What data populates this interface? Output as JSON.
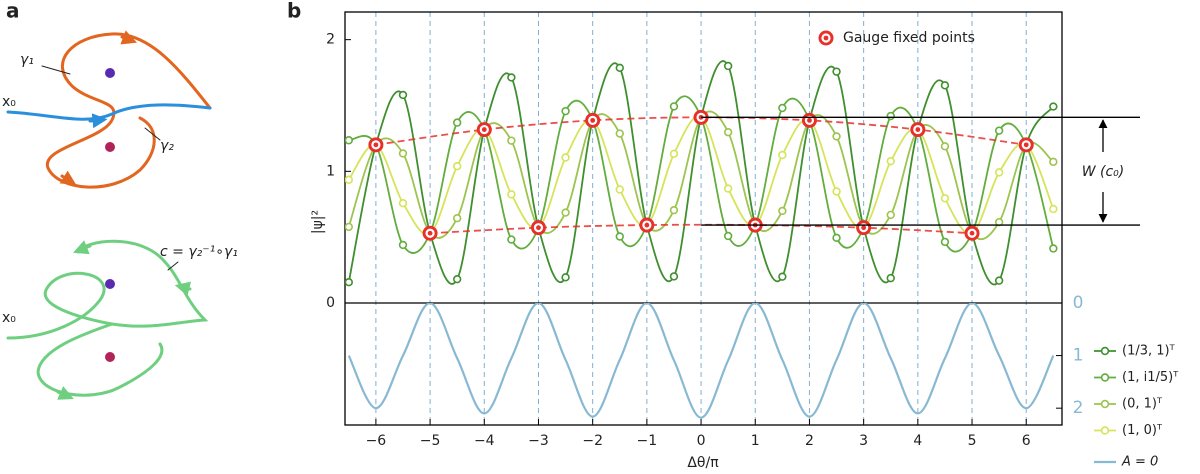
{
  "panel_labels": [
    "a",
    "b"
  ],
  "diagram": {
    "top": {
      "start": "x₀",
      "loop_label": "γ₁",
      "path_label": "γ₂"
    },
    "bottom": {
      "start": "x₀",
      "loop_label": "c = γ₂⁻¹∘γ₁"
    }
  },
  "chart_data": [
    {
      "type": "line",
      "ylabel": "|ψ|²",
      "annotation": "W (c₀)",
      "x": [
        -6.5,
        -6,
        -5.5,
        -5,
        -4.5,
        -4,
        -3.5,
        -3,
        -2.5,
        -2,
        -1.5,
        -1,
        -0.5,
        0,
        0.5,
        1,
        1.5,
        2,
        2.5,
        3,
        3.5,
        4,
        4.5,
        5,
        5.5,
        6,
        6.5
      ],
      "ylim": [
        0,
        2.21
      ],
      "yticks": [
        0,
        1,
        2
      ],
      "series": [
        {
          "name": "(1/3, 1)ᵀ",
          "color": "#3f8f2f",
          "values": [
            0.158,
            1.201,
            1.58,
            0.53,
            0.181,
            1.317,
            1.713,
            0.572,
            0.195,
            1.387,
            1.786,
            0.592,
            0.202,
            1.41,
            1.8,
            0.592,
            0.2,
            1.387,
            1.757,
            0.572,
            0.189,
            1.317,
            1.653,
            0.53,
            0.17,
            1.201,
            1.492
          ]
        },
        {
          "name": "(1, i1/5)ᵀ",
          "color": "#62ad3e",
          "values": [
            1.236,
            1.201,
            0.441,
            0.53,
            1.37,
            1.317,
            0.482,
            0.572,
            1.457,
            1.387,
            0.505,
            0.592,
            1.493,
            1.41,
            0.509,
            0.592,
            1.481,
            1.387,
            0.495,
            0.572,
            1.42,
            1.317,
            0.464,
            0.53,
            1.309,
            1.201,
            0.414
          ]
        },
        {
          "name": "(0, 1)ᵀ",
          "color": "#9cc44e",
          "values": [
            0.578,
            1.201,
            1.136,
            0.53,
            0.644,
            1.317,
            1.233,
            0.572,
            0.687,
            1.387,
            1.287,
            0.592,
            0.705,
            1.41,
            1.297,
            0.592,
            0.699,
            1.387,
            1.265,
            0.572,
            0.669,
            1.317,
            1.19,
            0.53,
            0.614,
            1.201,
            1.072
          ]
        },
        {
          "name": "(1, 0)ᵀ",
          "color": "#d6e45a",
          "values": [
            0.936,
            1.201,
            0.758,
            0.53,
            1.039,
            1.317,
            0.825,
            0.572,
            1.105,
            1.387,
            0.862,
            0.592,
            1.133,
            1.41,
            0.869,
            0.592,
            1.124,
            1.387,
            0.847,
            0.572,
            1.077,
            1.317,
            0.795,
            0.53,
            0.992,
            1.201,
            0.714
          ]
        },
        {
          "name": "Gauge fixed points",
          "color": "#e8302a",
          "linestyle": "dashed",
          "x": [
            -6,
            -5,
            -4,
            -3,
            -2,
            -1,
            0,
            1,
            2,
            3,
            4,
            5,
            6
          ],
          "values": [
            1.201,
            0.53,
            1.317,
            0.572,
            1.387,
            0.592,
            1.41,
            0.592,
            1.387,
            0.572,
            1.317,
            0.53,
            1.201
          ]
        }
      ]
    },
    {
      "type": "line",
      "xlabel": "Δθ/π",
      "grid": "x",
      "x": [
        -6.5,
        -6,
        -5.5,
        -5,
        -4.5,
        -4,
        -3.5,
        -3,
        -2.5,
        -2,
        -1.5,
        -1,
        -0.5,
        0,
        0.5,
        1,
        1.5,
        2,
        2.5,
        3,
        3.5,
        4,
        4.5,
        5,
        5.5,
        6,
        6.5
      ],
      "xlim": [
        -6.57,
        6.66
      ],
      "xticks": [
        {
          "value": -6,
          "label": "−6"
        },
        {
          "value": -5,
          "label": "−5"
        },
        {
          "value": -4,
          "label": "−4"
        },
        {
          "value": -3,
          "label": "−3"
        },
        {
          "value": -2,
          "label": "−2"
        },
        {
          "value": -1,
          "label": "−1"
        },
        0,
        1,
        2,
        3,
        4,
        5,
        6
      ],
      "ylim": [
        2.32,
        0
      ],
      "yticks": [
        0,
        1,
        2
      ],
      "series": [
        {
          "name": "A = 0",
          "color": "#88b9d3",
          "values": [
            1.0,
            2.0,
            1.0,
            0,
            1.05,
            2.1,
            1.05,
            0,
            1.08,
            2.16,
            1.08,
            0,
            1.09,
            2.18,
            1.09,
            0,
            1.08,
            2.16,
            1.08,
            0,
            1.05,
            2.1,
            1.05,
            0,
            1.0,
            2.0,
            1.0
          ]
        }
      ]
    }
  ]
}
